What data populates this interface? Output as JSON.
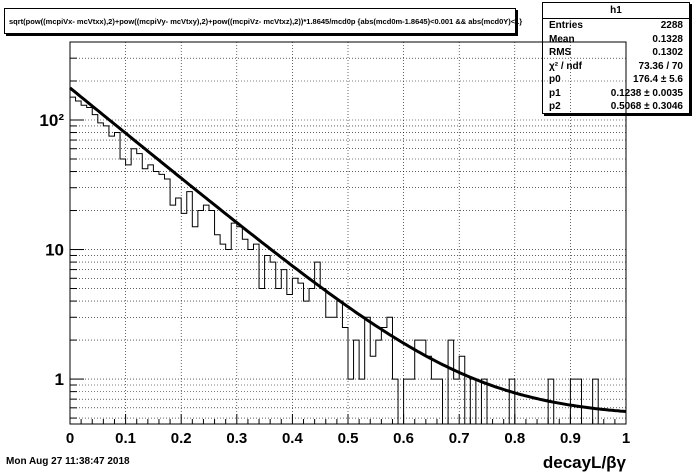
{
  "title": "sqrt(pow((mcpiVx- mcVtxx),2)+pow((mcpiVy- mcVtxy),2)+pow((mcpiVz- mcVtxz),2))*1.8645/mcd0p {abs(mcd0m-1.8645)<0.001 && abs(mcd0Y)<1}",
  "stats": {
    "name": "h1",
    "rows": [
      {
        "label": "Entries",
        "value": "2288"
      },
      {
        "label": "Mean",
        "value": "0.1328"
      },
      {
        "label": "RMS",
        "value": "0.1302"
      },
      {
        "label": "χ² / ndf",
        "value": "73.36 / 70"
      },
      {
        "label": "p0",
        "value": "176.4 ± 5.6"
      },
      {
        "label": "p1",
        "value": "0.1238 ± 0.0035"
      },
      {
        "label": "p2",
        "value": "0.5068 ± 0.3046"
      }
    ]
  },
  "timestamp": "Mon Aug 27 11:38:47 2018",
  "chart_data": {
    "type": "histogram",
    "xlabel": "decayL/βγ",
    "ylabel": "",
    "xlim": [
      0,
      1
    ],
    "ylim": [
      0.45,
      400
    ],
    "ylog": true,
    "grid": true,
    "bin_width": 0.01,
    "x_ticks": [
      "0",
      "0.1",
      "0.2",
      "0.3",
      "0.4",
      "0.5",
      "0.6",
      "0.7",
      "0.8",
      "0.9",
      "1"
    ],
    "y_ticks": [
      "1",
      "10",
      "10²"
    ],
    "values": [
      150,
      140,
      130,
      125,
      110,
      95,
      90,
      75,
      80,
      50,
      45,
      60,
      55,
      42,
      45,
      40,
      38,
      35,
      22,
      25,
      19,
      28,
      15,
      20,
      22,
      20,
      13,
      11,
      10,
      16,
      15,
      12,
      10,
      11,
      5,
      9,
      8,
      5,
      7,
      4.5,
      6,
      5.5,
      4,
      5,
      8,
      5,
      3,
      3,
      4,
      2.5,
      1,
      2,
      1,
      3,
      1.5,
      2,
      2.5,
      3,
      1,
      0,
      1,
      1,
      2,
      2,
      1.5,
      1,
      1,
      0,
      2,
      1,
      1.5,
      0,
      1,
      0,
      1,
      0,
      0,
      0,
      0,
      1,
      0,
      0,
      0,
      0,
      0,
      0,
      1,
      0,
      0,
      0,
      1,
      1,
      0,
      0,
      1,
      0,
      0,
      0,
      0,
      0
    ],
    "fit": {
      "function": "exponential plus constant",
      "p0": 176.4,
      "p1": 0.1238,
      "p2": 0.5068
    }
  }
}
